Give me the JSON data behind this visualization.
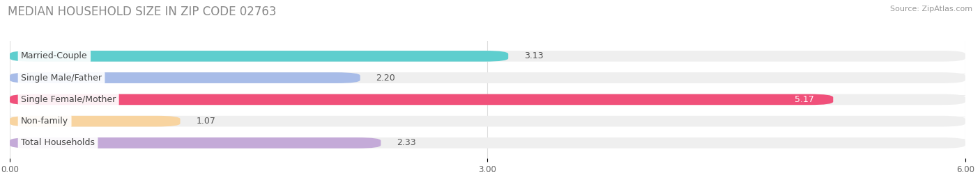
{
  "title": "MEDIAN HOUSEHOLD SIZE IN ZIP CODE 02763",
  "source": "Source: ZipAtlas.com",
  "categories": [
    "Married-Couple",
    "Single Male/Father",
    "Single Female/Mother",
    "Non-family",
    "Total Households"
  ],
  "values": [
    3.13,
    2.2,
    5.17,
    1.07,
    2.33
  ],
  "bar_colors": [
    "#5ecece",
    "#a8bce8",
    "#f0507a",
    "#f8d4a0",
    "#c4aad8"
  ],
  "background_color": "#ffffff",
  "bar_background_color": "#efefef",
  "xlim": [
    0,
    6.0
  ],
  "xticks": [
    0.0,
    3.0,
    6.0
  ],
  "xtick_labels": [
    "0.00",
    "3.00",
    "6.00"
  ],
  "title_fontsize": 12,
  "label_fontsize": 9,
  "value_fontsize": 9,
  "bar_height": 0.5,
  "n_bars": 5
}
